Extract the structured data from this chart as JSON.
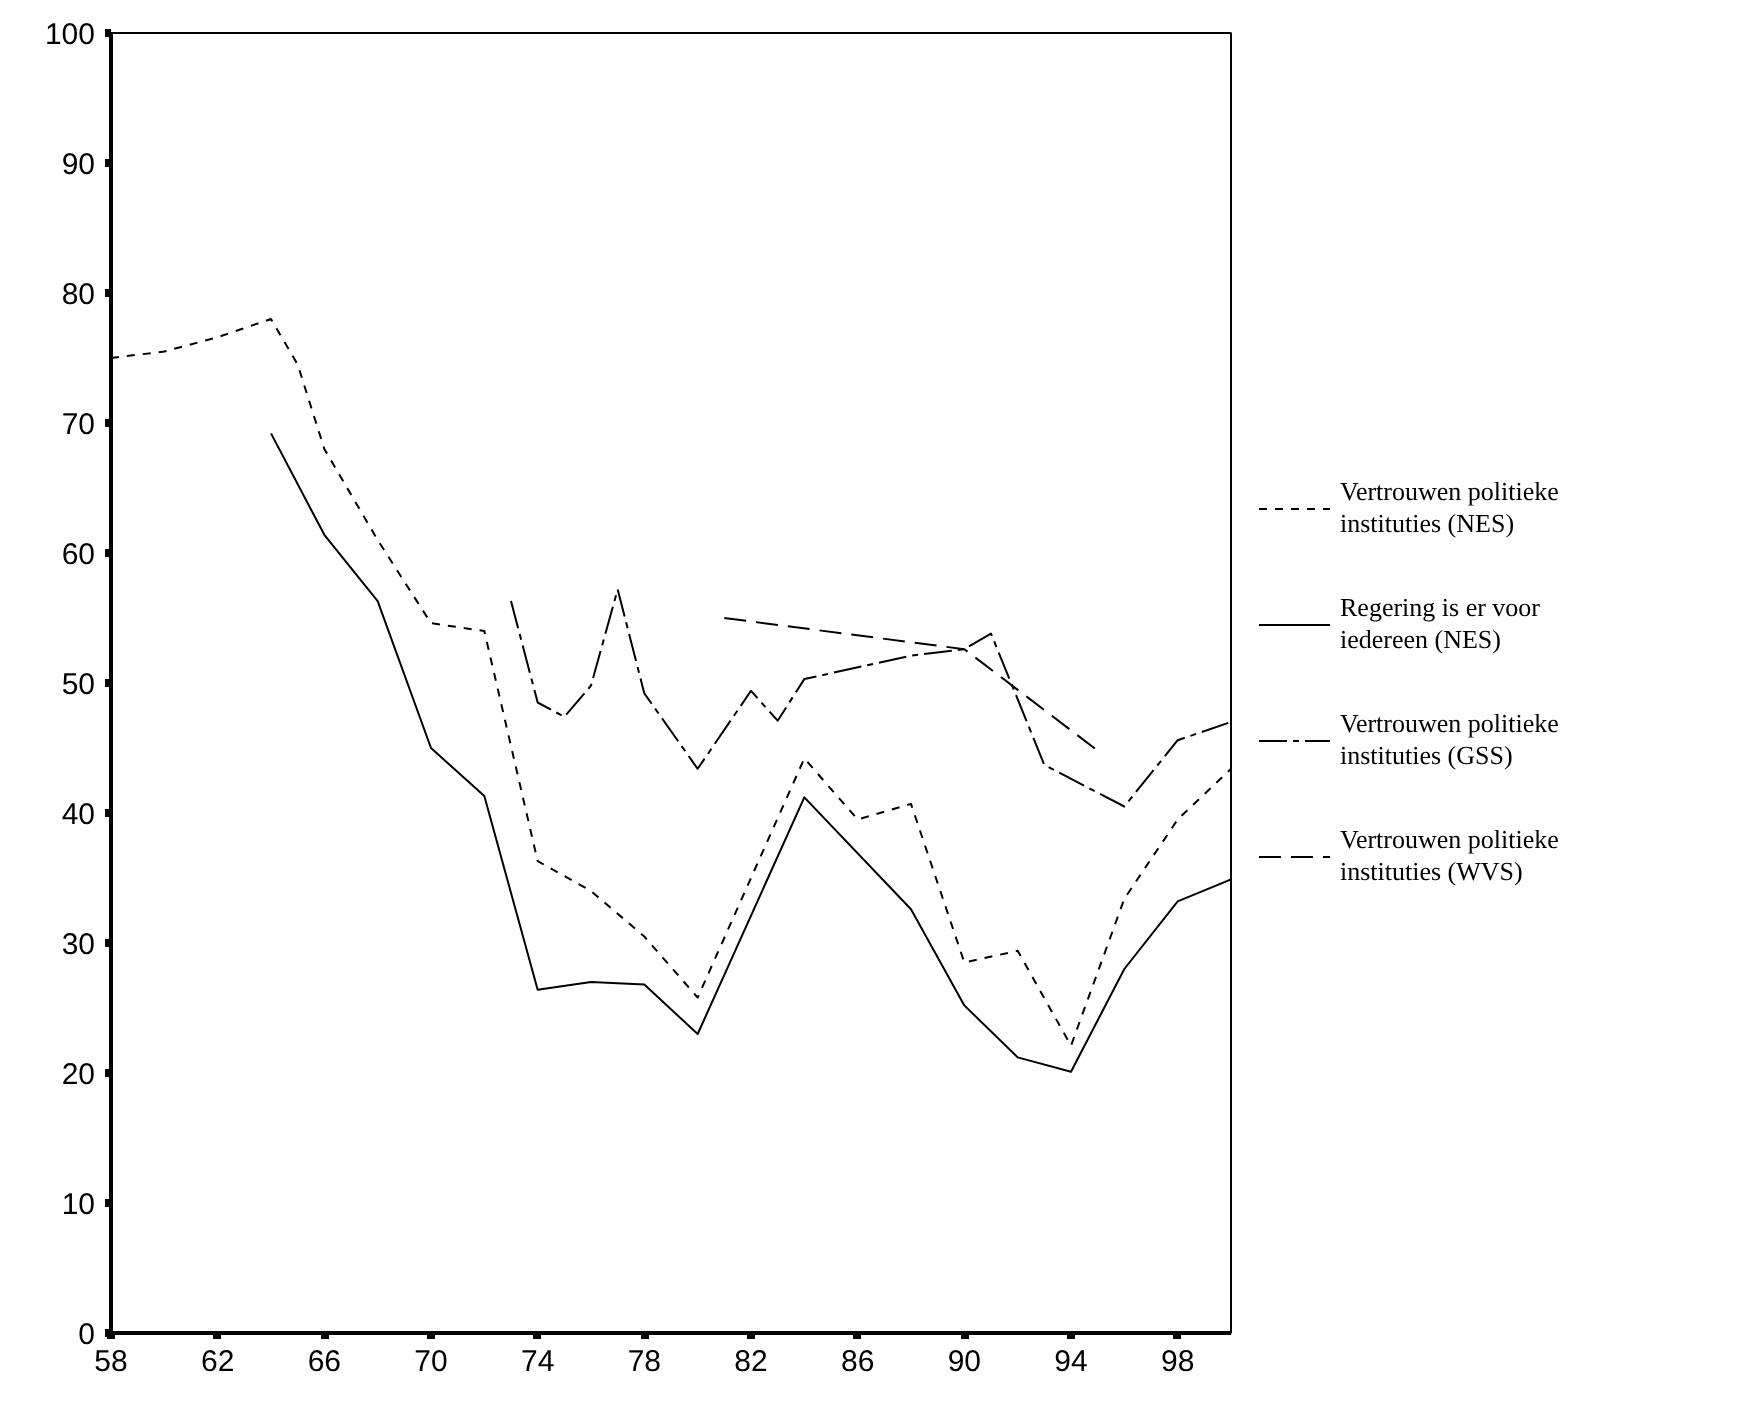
{
  "chart_data": {
    "type": "line",
    "xlim": [
      58,
      100
    ],
    "ylim": [
      0,
      100
    ],
    "xticks": [
      58,
      62,
      66,
      70,
      74,
      78,
      82,
      86,
      90,
      94,
      98
    ],
    "yticks": [
      0,
      10,
      20,
      30,
      40,
      50,
      60,
      70,
      80,
      90,
      100
    ],
    "grid": false,
    "legend": "right",
    "marker": "none",
    "series": [
      {
        "name": "Vertrouwen politieke instituties (NES)",
        "color": "#000000",
        "line_style": "dashed",
        "x": [
          58,
          60,
          62,
          64,
          65,
          66,
          68,
          70,
          72,
          74,
          76,
          78,
          80,
          84,
          86,
          88,
          90,
          92,
          94,
          96,
          98,
          100
        ],
        "values": [
          75,
          75.5,
          76.6,
          78,
          74.5,
          68,
          61,
          54.6,
          54,
          36.3,
          34,
          30.5,
          25.8,
          44.2,
          39.5,
          40.7,
          28.5,
          29.4,
          22.1,
          33.4,
          39.5,
          43.4
        ]
      },
      {
        "name": "Regering is er voor iedereen (NES)",
        "color": "#000000",
        "line_style": "solid",
        "x": [
          64,
          66,
          68,
          70,
          72,
          74,
          76,
          78,
          80,
          84,
          88,
          90,
          92,
          94,
          96,
          98,
          100
        ],
        "values": [
          69.2,
          61.4,
          56.3,
          45,
          41.3,
          26.4,
          27,
          26.8,
          23,
          41.2,
          32.6,
          25.2,
          21.2,
          20.1,
          28,
          33.2,
          34.9
        ]
      },
      {
        "name": "Vertrouwen politieke instituties (GSS)",
        "color": "#000000",
        "line_style": "dashed",
        "x": [
          73,
          74,
          75,
          76,
          77,
          78,
          80,
          82,
          83,
          84,
          88,
          90,
          91,
          93,
          96,
          98,
          100
        ],
        "values": [
          56.3,
          48.5,
          47.4,
          49.8,
          57.2,
          49.2,
          43.4,
          49.4,
          47.1,
          50.3,
          52.1,
          52.6,
          53.8,
          43.7,
          40.5,
          45.6,
          47
        ]
      },
      {
        "name": "Vertrouwen politieke instituties (WVS)",
        "color": "#000000",
        "line_style": "dashed",
        "x": [
          81,
          90,
          95
        ],
        "values": [
          55,
          52.6,
          44.8
        ]
      }
    ]
  }
}
